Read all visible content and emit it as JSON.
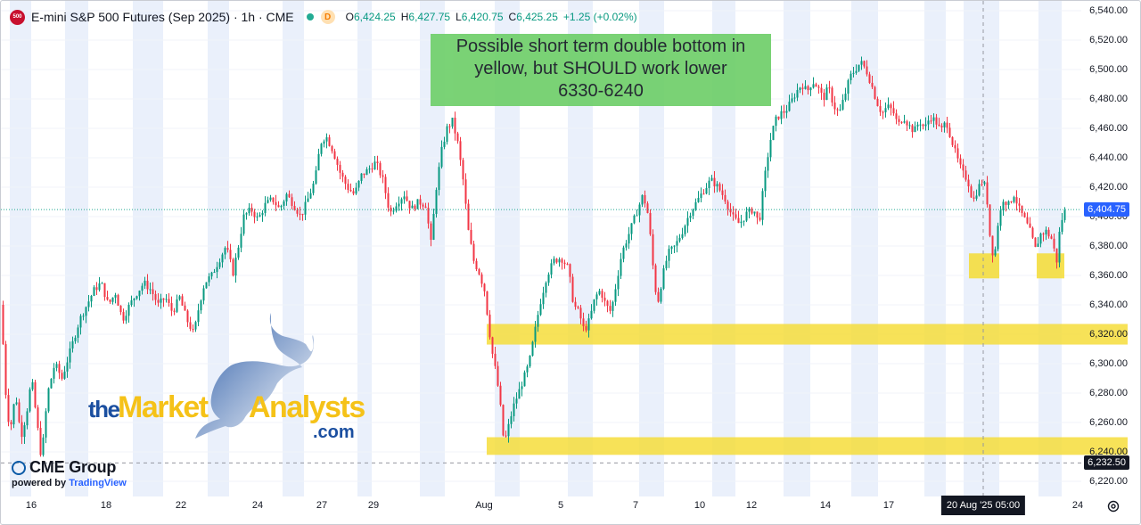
{
  "header": {
    "symbol_badge": "500",
    "symbol_name": "E-mini S&P 500 Futures (Sep 2025) · 1h · CME",
    "badge_d": "D",
    "o_label": "O",
    "o_value": "6,424.25",
    "h_label": "H",
    "h_value": "6,427.75",
    "l_label": "L",
    "l_value": "6,420.75",
    "c_label": "C",
    "c_value": "6,425.25",
    "change": "+1.25 (+0.02%)"
  },
  "annotation": {
    "line1": "Possible short term double bottom in",
    "line2": "yellow, but SHOULD work lower",
    "line3": "6330-6240"
  },
  "branding": {
    "cme": "CME Group",
    "powered_prefix": "powered by ",
    "powered_brand": "TradingView",
    "tma_the": "the",
    "tma_market": "Market",
    "tma_analysts": "Analysts",
    "tma_com": ".com"
  },
  "colors": {
    "up": "#089981",
    "down": "#f23645",
    "session_band": "#eaf0fb",
    "zone": "#f5dc33",
    "annotation_bg": "#6fcf6a",
    "current_price_tag": "#2962ff",
    "crosshair_tag": "#131722"
  },
  "chart_data": {
    "type": "candlestick",
    "title": "E-mini S&P 500 Futures (Sep 2025) · 1h · CME",
    "ylim": [
      6210,
      6545
    ],
    "y_ticks": [
      6540,
      6520,
      6500,
      6480,
      6460,
      6440,
      6420,
      6400,
      6380,
      6360,
      6340,
      6320,
      6300,
      6280,
      6260,
      6240,
      6220
    ],
    "y_tick_labels": [
      "6,540.00",
      "6,520.00",
      "6,500.00",
      "6,480.00",
      "6,460.00",
      "6,440.00",
      "6,420.00",
      "6,400.00",
      "6,380.00",
      "6,360.00",
      "6,340.00",
      "6,320.00",
      "6,300.00",
      "6,280.00",
      "6,260.00",
      "6,240.00",
      "6,220.00"
    ],
    "x_tick_labels": [
      "16",
      "18",
      "22",
      "24",
      "27",
      "29",
      "Aug",
      "5",
      "7",
      "10",
      "12",
      "14",
      "17",
      "24"
    ],
    "current_price": 6404.75,
    "current_price_label": "6,404.75",
    "crosshair_price": 6232.5,
    "crosshair_price_label": "6,232.50",
    "crosshair_time_label": "20 Aug '25   05:00",
    "price_path": [
      [
        0,
        6340
      ],
      [
        3,
        6300
      ],
      [
        6,
        6270
      ],
      [
        10,
        6255
      ],
      [
        16,
        6280
      ],
      [
        22,
        6250
      ],
      [
        28,
        6265
      ],
      [
        34,
        6290
      ],
      [
        40,
        6260
      ],
      [
        45,
        6235
      ],
      [
        52,
        6280
      ],
      [
        60,
        6300
      ],
      [
        68,
        6290
      ],
      [
        78,
        6310
      ],
      [
        88,
        6330
      ],
      [
        96,
        6340
      ],
      [
        104,
        6350
      ],
      [
        112,
        6355
      ],
      [
        120,
        6340
      ],
      [
        128,
        6348
      ],
      [
        136,
        6330
      ],
      [
        144,
        6340
      ],
      [
        152,
        6348
      ],
      [
        160,
        6355
      ],
      [
        168,
        6350
      ],
      [
        176,
        6340
      ],
      [
        184,
        6345
      ],
      [
        192,
        6335
      ],
      [
        200,
        6345
      ],
      [
        208,
        6330
      ],
      [
        216,
        6320
      ],
      [
        222,
        6340
      ],
      [
        228,
        6355
      ],
      [
        236,
        6360
      ],
      [
        244,
        6370
      ],
      [
        252,
        6380
      ],
      [
        260,
        6362
      ],
      [
        266,
        6380
      ],
      [
        272,
        6400
      ],
      [
        280,
        6405
      ],
      [
        288,
        6398
      ],
      [
        296,
        6408
      ],
      [
        304,
        6412
      ],
      [
        312,
        6405
      ],
      [
        320,
        6415
      ],
      [
        328,
        6408
      ],
      [
        336,
        6400
      ],
      [
        344,
        6412
      ],
      [
        352,
        6425
      ],
      [
        358,
        6450
      ],
      [
        364,
        6455
      ],
      [
        372,
        6445
      ],
      [
        380,
        6430
      ],
      [
        388,
        6420
      ],
      [
        396,
        6415
      ],
      [
        404,
        6428
      ],
      [
        412,
        6432
      ],
      [
        420,
        6437
      ],
      [
        428,
        6425
      ],
      [
        436,
        6402
      ],
      [
        444,
        6410
      ],
      [
        452,
        6415
      ],
      [
        460,
        6405
      ],
      [
        468,
        6410
      ],
      [
        476,
        6408
      ],
      [
        482,
        6382
      ],
      [
        488,
        6420
      ],
      [
        494,
        6445
      ],
      [
        500,
        6460
      ],
      [
        506,
        6465
      ],
      [
        512,
        6450
      ],
      [
        518,
        6425
      ],
      [
        524,
        6390
      ],
      [
        530,
        6370
      ],
      [
        536,
        6362
      ],
      [
        542,
        6350
      ],
      [
        546,
        6330
      ],
      [
        550,
        6310
      ],
      [
        556,
        6290
      ],
      [
        560,
        6270
      ],
      [
        564,
        6245
      ],
      [
        568,
        6255
      ],
      [
        574,
        6270
      ],
      [
        580,
        6280
      ],
      [
        586,
        6290
      ],
      [
        592,
        6300
      ],
      [
        598,
        6320
      ],
      [
        604,
        6340
      ],
      [
        612,
        6360
      ],
      [
        620,
        6370
      ],
      [
        628,
        6372
      ],
      [
        636,
        6365
      ],
      [
        642,
        6340
      ],
      [
        648,
        6335
      ],
      [
        654,
        6322
      ],
      [
        660,
        6330
      ],
      [
        666,
        6345
      ],
      [
        672,
        6350
      ],
      [
        678,
        6340
      ],
      [
        684,
        6335
      ],
      [
        690,
        6355
      ],
      [
        696,
        6375
      ],
      [
        702,
        6385
      ],
      [
        708,
        6395
      ],
      [
        714,
        6405
      ],
      [
        720,
        6415
      ],
      [
        726,
        6400
      ],
      [
        732,
        6360
      ],
      [
        736,
        6340
      ],
      [
        742,
        6360
      ],
      [
        748,
        6375
      ],
      [
        756,
        6380
      ],
      [
        764,
        6390
      ],
      [
        772,
        6402
      ],
      [
        780,
        6410
      ],
      [
        788,
        6418
      ],
      [
        796,
        6425
      ],
      [
        804,
        6420
      ],
      [
        812,
        6412
      ],
      [
        820,
        6400
      ],
      [
        828,
        6395
      ],
      [
        836,
        6402
      ],
      [
        844,
        6405
      ],
      [
        850,
        6395
      ],
      [
        856,
        6425
      ],
      [
        862,
        6450
      ],
      [
        868,
        6465
      ],
      [
        874,
        6470
      ],
      [
        880,
        6472
      ],
      [
        886,
        6478
      ],
      [
        892,
        6485
      ],
      [
        898,
        6490
      ],
      [
        904,
        6485
      ],
      [
        910,
        6492
      ],
      [
        916,
        6488
      ],
      [
        922,
        6480
      ],
      [
        928,
        6488
      ],
      [
        934,
        6475
      ],
      [
        940,
        6470
      ],
      [
        946,
        6482
      ],
      [
        952,
        6495
      ],
      [
        958,
        6500
      ],
      [
        964,
        6505
      ],
      [
        970,
        6500
      ],
      [
        976,
        6490
      ],
      [
        982,
        6478
      ],
      [
        988,
        6470
      ],
      [
        994,
        6475
      ],
      [
        1000,
        6472
      ],
      [
        1006,
        6462
      ],
      [
        1012,
        6468
      ],
      [
        1018,
        6462
      ],
      [
        1024,
        6458
      ],
      [
        1030,
        6465
      ],
      [
        1036,
        6460
      ],
      [
        1042,
        6468
      ],
      [
        1048,
        6465
      ],
      [
        1054,
        6458
      ],
      [
        1060,
        6465
      ],
      [
        1066,
        6452
      ],
      [
        1072,
        6440
      ],
      [
        1078,
        6430
      ],
      [
        1084,
        6425
      ],
      [
        1090,
        6410
      ],
      [
        1096,
        6420
      ],
      [
        1102,
        6425
      ],
      [
        1106,
        6410
      ],
      [
        1110,
        6380
      ],
      [
        1114,
        6372
      ],
      [
        1118,
        6395
      ],
      [
        1124,
        6412
      ],
      [
        1130,
        6408
      ],
      [
        1136,
        6415
      ],
      [
        1142,
        6405
      ],
      [
        1148,
        6398
      ],
      [
        1154,
        6390
      ],
      [
        1160,
        6378
      ],
      [
        1166,
        6388
      ],
      [
        1172,
        6390
      ],
      [
        1178,
        6385
      ],
      [
        1184,
        6370
      ],
      [
        1188,
        6395
      ],
      [
        1194,
        6405
      ]
    ],
    "support_zones": [
      [
        6313,
        6327
      ],
      [
        6238,
        6250
      ]
    ],
    "double_bottom_zones": [
      {
        "x_from": 1086,
        "x_to": 1120,
        "y_from": 6358,
        "y_to": 6375
      },
      {
        "x_from": 1162,
        "x_to": 1193,
        "y_from": 6358,
        "y_to": 6375
      }
    ]
  }
}
